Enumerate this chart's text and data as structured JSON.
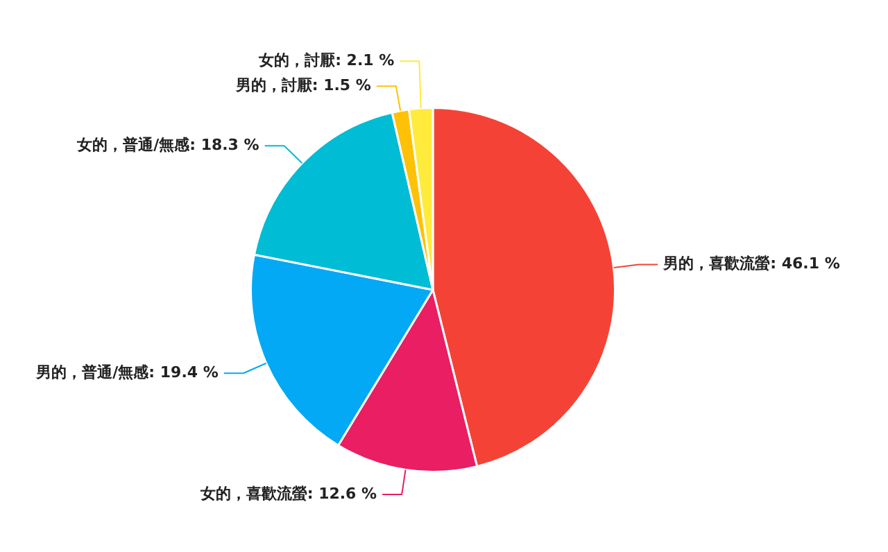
{
  "chart_data": {
    "type": "pie",
    "categories": [
      "男的，喜歡流螢",
      "女的，喜歡流螢",
      "男的，普通/無感",
      "女的，普通/無感",
      "男的，討厭",
      "女的，討厭"
    ],
    "values": [
      46.1,
      12.6,
      19.4,
      18.3,
      1.5,
      2.1
    ],
    "colors": [
      "#f44336",
      "#e91e63",
      "#03a9f4",
      "#00bcd4",
      "#ffc107",
      "#ffeb3b"
    ],
    "value_labels": [
      "46.1 %",
      "12.6 %",
      "19.4 %",
      "18.3 %",
      "1.5 %",
      "2.1 %"
    ],
    "legend": false
  }
}
